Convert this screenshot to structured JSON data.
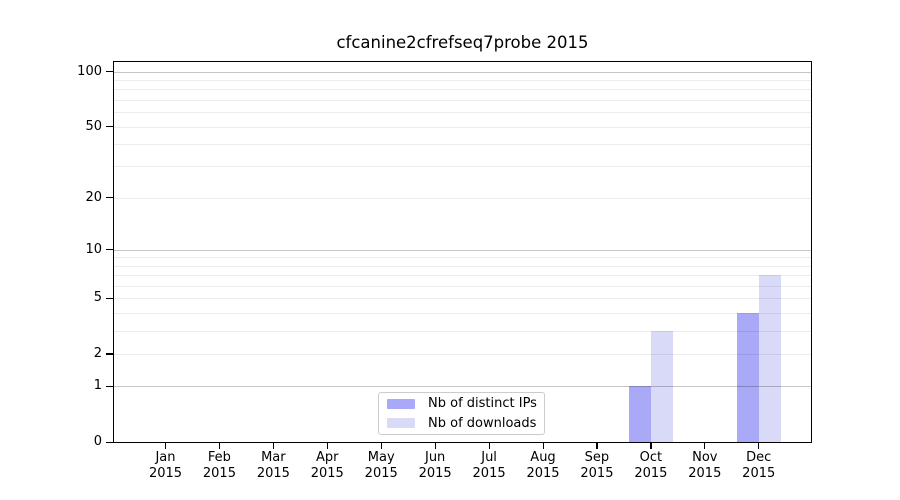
{
  "chart_data": {
    "type": "bar",
    "title": "cfcanine2cfrefseq7probe 2015",
    "categories": [
      "Jan 2015",
      "Feb 2015",
      "Mar 2015",
      "Apr 2015",
      "May 2015",
      "Jun 2015",
      "Jul 2015",
      "Aug 2015",
      "Sep 2015",
      "Oct 2015",
      "Nov 2015",
      "Dec 2015"
    ],
    "months": [
      "Jan",
      "Feb",
      "Mar",
      "Apr",
      "May",
      "Jun",
      "Jul",
      "Aug",
      "Sep",
      "Oct",
      "Nov",
      "Dec"
    ],
    "year": "2015",
    "series": [
      {
        "name": "Nb of distinct IPs",
        "color": "#a9a9f8",
        "values": [
          0,
          0,
          0,
          0,
          0,
          0,
          0,
          0,
          0,
          1,
          0,
          4
        ]
      },
      {
        "name": "Nb of downloads",
        "color": "#d9d9f8",
        "values": [
          0,
          0,
          0,
          0,
          0,
          0,
          0,
          0,
          0,
          3,
          0,
          7
        ]
      }
    ],
    "xlabel": "",
    "ylabel": "",
    "yscale": "log1p",
    "ylim": [
      0,
      113
    ],
    "yticks": [
      0,
      1,
      2,
      5,
      10,
      20,
      50,
      100
    ],
    "grid": {
      "show": true,
      "major_at": [
        1,
        10,
        100
      ],
      "major_color": "#c6c6c6",
      "minor_color": "#ececec"
    },
    "legend_position": "bottom-center",
    "axis_color": "#000000",
    "background": "#ffffff"
  }
}
